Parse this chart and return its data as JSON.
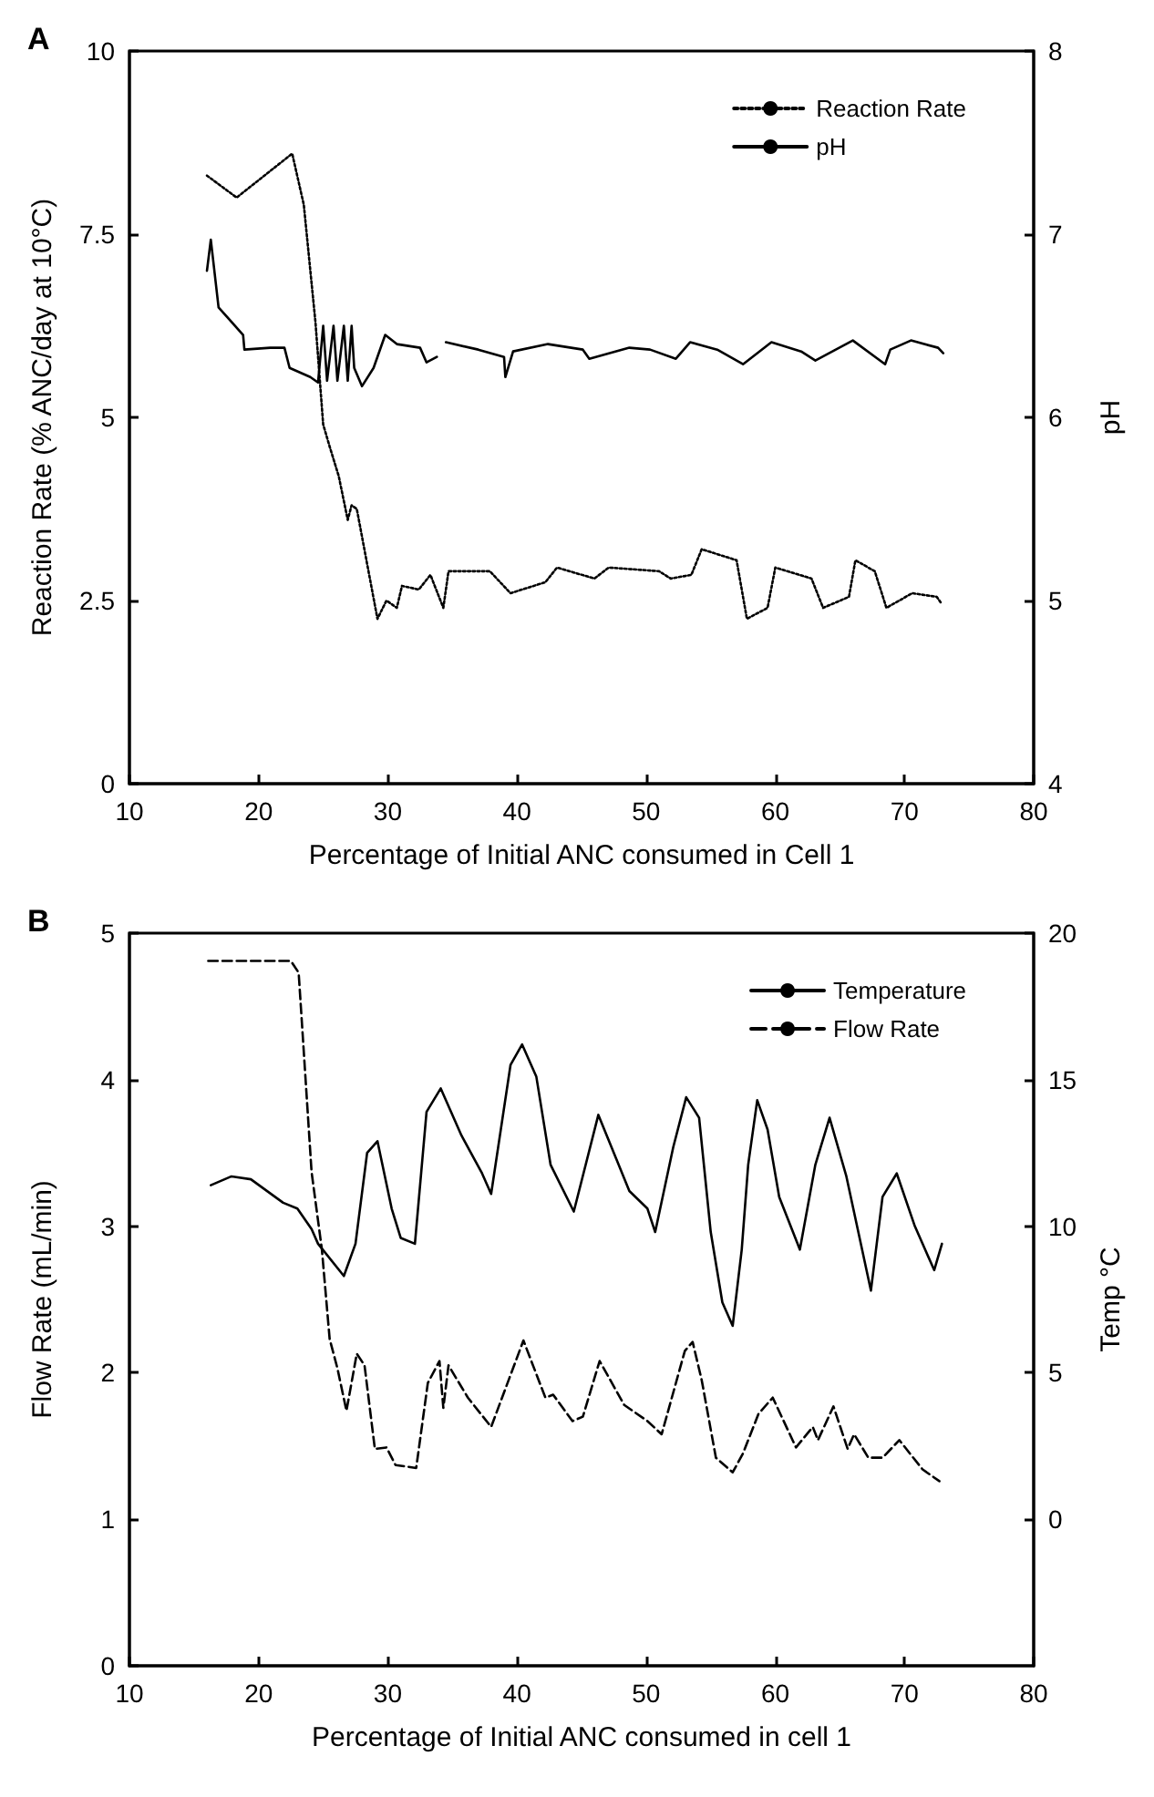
{
  "chart_data": [
    {
      "type": "line",
      "title": "A",
      "xlabel": "Percentage of Initial ANC consumed in Cell 1",
      "ylabel": "Reaction Rate (% ANC/day at 10°C)",
      "y2label": "pH",
      "xlim": [
        10,
        80
      ],
      "xticks": [
        10,
        20,
        30,
        40,
        50,
        60,
        70,
        80
      ],
      "ylim": [
        0,
        10
      ],
      "yticks": [
        0,
        2.5,
        5,
        7.5,
        10
      ],
      "y2lim": [
        4,
        8
      ],
      "y2ticks": [
        4,
        5,
        6,
        7,
        8
      ],
      "legend": "top right",
      "grid": false,
      "marker": "none",
      "series": [
        {
          "name": "Reaction Rate",
          "color": "#000000",
          "line_style": "dotted",
          "x": [
            16.0,
            18.3,
            22.6,
            23.5,
            24.4,
            25.0,
            25.5,
            26.2,
            26.9,
            27.2,
            27.6,
            29.2,
            29.9,
            30.7,
            31.1,
            32.4,
            33.3,
            34.3,
            34.7,
            37.9,
            39.5,
            42.2,
            43.1,
            46.0,
            47.1,
            51.0,
            51.9,
            53.5,
            54.3,
            57.0,
            57.8,
            59.4,
            60.0,
            62.8,
            63.7,
            65.7,
            66.2,
            67.7,
            68.6,
            70.6,
            72.5,
            72.9
          ],
          "values": [
            8.3,
            8.0,
            8.6,
            7.9,
            6.3,
            4.9,
            4.6,
            4.2,
            3.6,
            3.8,
            3.75,
            2.25,
            2.5,
            2.4,
            2.7,
            2.65,
            2.85,
            2.4,
            2.9,
            2.9,
            2.6,
            2.75,
            2.95,
            2.8,
            2.95,
            2.9,
            2.8,
            2.85,
            3.2,
            3.05,
            2.25,
            2.4,
            2.95,
            2.8,
            2.4,
            2.55,
            3.05,
            2.9,
            2.4,
            2.6,
            2.55,
            2.45
          ]
        },
        {
          "name": "pH",
          "color": "#000000",
          "line_style": "solid",
          "axis": "y2",
          "x": [
            16.0,
            16.3,
            16.9,
            18.8,
            18.9,
            20.9,
            22.0,
            22.4,
            24.0,
            24.6,
            25.0,
            25.3,
            25.8,
            26.1,
            26.6,
            26.9,
            27.2,
            27.4,
            28.0,
            28.9,
            29.8,
            30.7,
            32.5,
            33.0,
            33.8,
            34.1,
            34.5,
            37.0,
            39.0,
            39.1,
            39.7,
            42.4,
            45.1,
            45.6,
            48.7,
            50.3,
            52.3,
            53.4,
            55.5,
            57.5,
            59.7,
            62.0,
            63.1,
            66.0,
            68.5,
            68.9,
            70.5,
            72.6,
            73.0
          ],
          "values": [
            6.8,
            6.97,
            6.6,
            6.45,
            6.37,
            6.38,
            6.38,
            6.27,
            6.22,
            6.19,
            6.5,
            6.2,
            6.5,
            6.2,
            6.5,
            6.2,
            6.5,
            6.27,
            6.17,
            6.27,
            6.45,
            6.4,
            6.38,
            6.3,
            6.33,
            null,
            6.41,
            6.37,
            6.33,
            6.22,
            6.36,
            6.4,
            6.37,
            6.32,
            6.38,
            6.37,
            6.32,
            6.41,
            6.37,
            6.29,
            6.41,
            6.36,
            6.31,
            6.42,
            6.29,
            6.37,
            6.42,
            6.38,
            6.35
          ]
        }
      ]
    },
    {
      "type": "line",
      "title": "B",
      "xlabel": "Percentage of Initial ANC consumed in cell 1",
      "ylabel": "Flow Rate (mL/min)",
      "y2label": "Temp °C",
      "xlim": [
        10,
        80
      ],
      "xticks": [
        10,
        20,
        30,
        40,
        50,
        60,
        70,
        80
      ],
      "ylim": [
        0,
        5
      ],
      "yticks": [
        0,
        1,
        2,
        3,
        4,
        5
      ],
      "y2lim": [
        -5,
        20
      ],
      "y2ticks": [
        0,
        5,
        10,
        15,
        20
      ],
      "legend": "top right",
      "grid": false,
      "marker": "none",
      "series": [
        {
          "name": "Temperature",
          "color": "#000000",
          "line_style": "solid",
          "axis": "y2",
          "x": [
            16.3,
            17.9,
            19.4,
            21.9,
            23.0,
            24.1,
            24.6,
            26.6,
            27.5,
            28.4,
            29.2,
            30.3,
            31.0,
            32.1,
            33.0,
            34.1,
            35.7,
            37.3,
            38.0,
            39.5,
            40.4,
            41.5,
            42.6,
            44.4,
            46.3,
            48.7,
            50.1,
            50.7,
            52.1,
            53.1,
            54.1,
            55.0,
            55.9,
            56.7,
            57.4,
            57.9,
            58.6,
            59.4,
            60.3,
            61.9,
            63.1,
            64.2,
            65.5,
            67.4,
            68.3,
            69.4,
            70.8,
            72.3,
            72.9
          ],
          "values": [
            11.4,
            11.7,
            11.6,
            10.8,
            10.6,
            9.9,
            9.4,
            8.3,
            9.4,
            12.5,
            12.9,
            10.6,
            9.6,
            9.4,
            13.9,
            14.7,
            13.1,
            11.8,
            11.1,
            15.5,
            16.2,
            15.1,
            12.1,
            10.5,
            13.8,
            11.2,
            10.6,
            9.8,
            12.7,
            14.4,
            13.7,
            9.8,
            7.4,
            6.6,
            9.2,
            12.1,
            14.3,
            13.3,
            11.0,
            9.2,
            12.1,
            13.7,
            11.7,
            7.8,
            11.0,
            11.8,
            10.0,
            8.5,
            9.4
          ]
        },
        {
          "name": "Flow Rate",
          "color": "#000000",
          "line_style": "dashed",
          "x": [
            16.1,
            22.5,
            23.1,
            24.1,
            24.9,
            25.5,
            26.1,
            26.8,
            27.6,
            28.2,
            29.0,
            29.9,
            30.6,
            32.2,
            33.1,
            34.0,
            34.3,
            34.7,
            36.2,
            38.0,
            40.5,
            42.2,
            42.8,
            44.3,
            45.1,
            46.4,
            48.3,
            50.1,
            51.2,
            53.0,
            53.6,
            54.3,
            55.4,
            56.7,
            57.5,
            58.7,
            59.8,
            61.6,
            62.9,
            63.3,
            64.5,
            65.6,
            66.1,
            67.2,
            68.3,
            69.6,
            71.4,
            72.7
          ],
          "values": [
            4.81,
            4.81,
            4.73,
            3.37,
            2.84,
            2.23,
            2.03,
            1.74,
            2.13,
            2.05,
            1.48,
            1.49,
            1.37,
            1.35,
            1.93,
            2.08,
            1.76,
            2.05,
            1.83,
            1.63,
            2.22,
            1.83,
            1.85,
            1.67,
            1.7,
            2.08,
            1.78,
            1.67,
            1.58,
            2.15,
            2.21,
            1.95,
            1.42,
            1.32,
            1.45,
            1.72,
            1.83,
            1.49,
            1.63,
            1.54,
            1.77,
            1.48,
            1.58,
            1.42,
            1.42,
            1.54,
            1.34,
            1.26
          ]
        }
      ]
    }
  ]
}
